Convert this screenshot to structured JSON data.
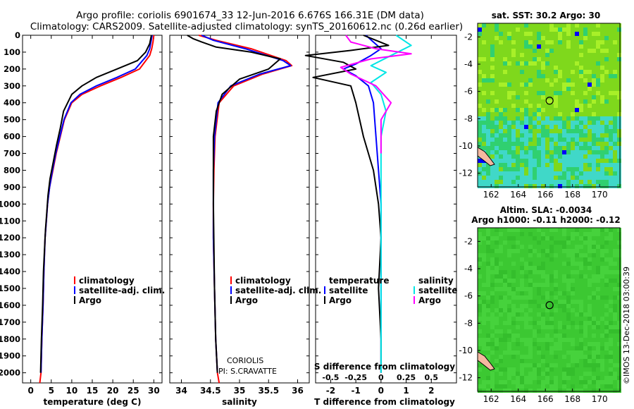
{
  "header": {
    "line1": "Argo profile: coriolis 6901674_33 12-Jun-2016 6.676S 166.31E (DM data)",
    "line2": "Climatology: CARS2009. Satellite-adjusted climatology: synTS_20160612.nc (0.26d earlier)"
  },
  "colors": {
    "climatology": "#ff0000",
    "satellite": "#0000ff",
    "argo": "#000000",
    "sat_salinity": "#00e5e5",
    "argo_salinity": "#ff00ff"
  },
  "chart_data": [
    {
      "id": "temperature",
      "type": "line",
      "xlabel": "temperature (deg C)",
      "xlim": [
        -2,
        32
      ],
      "xticks": [
        0,
        5,
        10,
        15,
        20,
        25,
        30
      ],
      "ylim": [
        2060,
        0
      ],
      "yticks": [
        0,
        100,
        200,
        300,
        400,
        500,
        600,
        700,
        800,
        900,
        1000,
        1100,
        1200,
        1300,
        1400,
        1500,
        1600,
        1700,
        1800,
        1900,
        2000
      ],
      "legend": [
        "climatology",
        "satellite-adj. clim.",
        "Argo"
      ],
      "series": [
        {
          "name": "climatology",
          "color": "#ff0000",
          "x": [
            30.0,
            29.8,
            29.5,
            29.0,
            26.5,
            22.0,
            17.0,
            12.5,
            10.0,
            8.2,
            7.2,
            6.2,
            5.4,
            4.6,
            4.1,
            3.8,
            3.5,
            3.2,
            3.0,
            2.7,
            2.5,
            2.2
          ],
          "y": [
            0,
            40,
            80,
            120,
            200,
            250,
            300,
            350,
            400,
            500,
            600,
            700,
            800,
            900,
            1000,
            1100,
            1200,
            1400,
            1600,
            1800,
            2000,
            2060
          ]
        },
        {
          "name": "satellite-adj. clim.",
          "color": "#0000ff",
          "x": [
            29.6,
            29.3,
            29.0,
            28.3,
            25.5,
            21.0,
            16.0,
            12.0,
            9.8,
            8.1,
            7.1,
            6.1,
            5.3,
            4.6,
            4.1,
            3.8,
            3.5,
            3.2,
            3.0,
            2.7,
            2.5
          ],
          "y": [
            0,
            40,
            80,
            120,
            200,
            250,
            300,
            350,
            400,
            500,
            600,
            700,
            800,
            900,
            1000,
            1100,
            1200,
            1400,
            1600,
            1800,
            2000
          ]
        },
        {
          "name": "Argo",
          "color": "#000000",
          "x": [
            29.4,
            29.0,
            28.0,
            26.0,
            21.0,
            16.0,
            12.5,
            10.0,
            8.0,
            7.2,
            6.3,
            5.5,
            4.7,
            4.2,
            3.9,
            3.6,
            3.4,
            3.1,
            2.9,
            2.6,
            2.4
          ],
          "y": [
            0,
            50,
            100,
            150,
            200,
            250,
            300,
            350,
            450,
            550,
            650,
            750,
            850,
            950,
            1050,
            1150,
            1250,
            1400,
            1600,
            1800,
            2000
          ]
        }
      ]
    },
    {
      "id": "salinity",
      "type": "line",
      "xlabel": "salinity",
      "xlim": [
        33.8,
        36.2
      ],
      "xticks": [
        34,
        34.5,
        35,
        35.5,
        36
      ],
      "xtick_labels": [
        "34",
        "34.5",
        "35",
        "35.5",
        "36"
      ],
      "legend": [
        "climatology",
        "satellite-adj. clim.",
        "Argo"
      ],
      "annotation": [
        "CORIOLIS",
        "PI: S.CRAVATTE"
      ],
      "series": [
        {
          "name": "climatology",
          "color": "#ff0000",
          "x": [
            34.3,
            34.6,
            35.2,
            35.8,
            35.9,
            35.4,
            34.9,
            34.65,
            34.58,
            34.56,
            34.55,
            34.55,
            34.57,
            34.59,
            34.62,
            34.65
          ],
          "y": [
            0,
            30,
            80,
            150,
            180,
            230,
            300,
            400,
            600,
            800,
            1000,
            1200,
            1500,
            1800,
            2000,
            2060
          ]
        },
        {
          "name": "satellite-adj. clim.",
          "color": "#0000ff",
          "x": [
            34.35,
            34.55,
            35.1,
            35.75,
            35.88,
            35.35,
            34.85,
            34.63,
            34.57,
            34.55,
            34.55,
            34.55,
            34.57,
            34.59,
            34.62
          ],
          "y": [
            0,
            30,
            80,
            150,
            180,
            230,
            300,
            400,
            600,
            800,
            1000,
            1200,
            1500,
            1800,
            2000
          ]
        },
        {
          "name": "Argo",
          "color": "#000000",
          "x": [
            34.1,
            34.2,
            34.35,
            34.6,
            35.2,
            35.7,
            35.5,
            35.0,
            34.7,
            34.6,
            34.55,
            34.55,
            34.55,
            34.57,
            34.59,
            34.62
          ],
          "y": [
            0,
            20,
            40,
            70,
            100,
            140,
            200,
            260,
            350,
            450,
            600,
            800,
            1000,
            1500,
            1800,
            2000
          ]
        }
      ]
    },
    {
      "id": "difference",
      "type": "line",
      "xlabel": "T difference from climatology",
      "top_label": "S difference from climatology",
      "xlim": [
        -2.6,
        3.0
      ],
      "xticks": [
        -2,
        -1,
        0,
        1,
        2
      ],
      "top_xticks": [
        -0.5,
        -0.25,
        0,
        0.25,
        0.5
      ],
      "top_xtick_labels": [
        "-0.5",
        "-0.25",
        "0",
        "0.25",
        "0.5"
      ],
      "legend_left": {
        "title": "temperature",
        "items": [
          "satellite",
          "Argo"
        ]
      },
      "legend_right": {
        "title": "salinity",
        "items": [
          "satellite",
          "Argo"
        ]
      },
      "series": [
        {
          "name": "temperature satellite",
          "color": "#0000ff",
          "x": [
            -0.6,
            -0.3,
            0.0,
            -0.4,
            -1.0,
            -1.5,
            -1.0,
            -0.5,
            -0.3,
            -0.2,
            -0.1,
            0.0,
            0.0,
            0.0,
            0.0,
            0.0
          ],
          "y": [
            0,
            40,
            80,
            120,
            170,
            200,
            240,
            300,
            400,
            600,
            800,
            1000,
            1200,
            1500,
            1800,
            2000
          ]
        },
        {
          "name": "temperature Argo",
          "color": "#000000",
          "x": [
            -0.7,
            -0.2,
            0.3,
            -1.2,
            -3.0,
            -1.5,
            -1.0,
            -2.7,
            -1.2,
            -1.0,
            -0.7,
            -0.3,
            -0.1,
            0.0,
            -0.1,
            0.0,
            0.0
          ],
          "y": [
            0,
            30,
            60,
            90,
            120,
            160,
            200,
            250,
            300,
            400,
            600,
            800,
            1000,
            1200,
            1500,
            1800,
            2000
          ]
        },
        {
          "name": "salinity satellite",
          "color": "#00e5e5",
          "x": [
            0.15,
            0.3,
            0.1,
            -0.1,
            0.05,
            -0.1,
            0.0,
            0.05,
            0.0,
            0.0,
            0.0,
            0.0,
            0.0
          ],
          "y": [
            0,
            60,
            120,
            180,
            220,
            280,
            350,
            450,
            600,
            900,
            1200,
            1600,
            2000
          ]
        },
        {
          "name": "salinity Argo",
          "color": "#ff00ff",
          "x": [
            -0.35,
            -0.3,
            -0.05,
            0.3,
            -0.1,
            -0.4,
            -0.3,
            -0.05,
            0.1,
            0.0,
            0.0
          ],
          "y": [
            0,
            40,
            80,
            110,
            140,
            190,
            230,
            300,
            400,
            500,
            700
          ]
        }
      ]
    }
  ],
  "maps": {
    "sst": {
      "title": "sat. SST: 30.2 Argo: 30",
      "xticks": [
        "162",
        "164",
        "166",
        "168",
        "170"
      ],
      "yticks": [
        "-2",
        "-4",
        "-6",
        "-8",
        "-10",
        "-12"
      ]
    },
    "sla": {
      "title1": "Altim. SLA: -0.0034",
      "title2": "Argo h1000: -0.11 h2000: -0.12",
      "xticks": [
        "162",
        "164",
        "166",
        "168",
        "170"
      ],
      "yticks": [
        "-2",
        "-4",
        "-6",
        "-8",
        "-10",
        "-12"
      ]
    }
  },
  "footer": "©IMOS 13-Dec-2018 03:00:39"
}
